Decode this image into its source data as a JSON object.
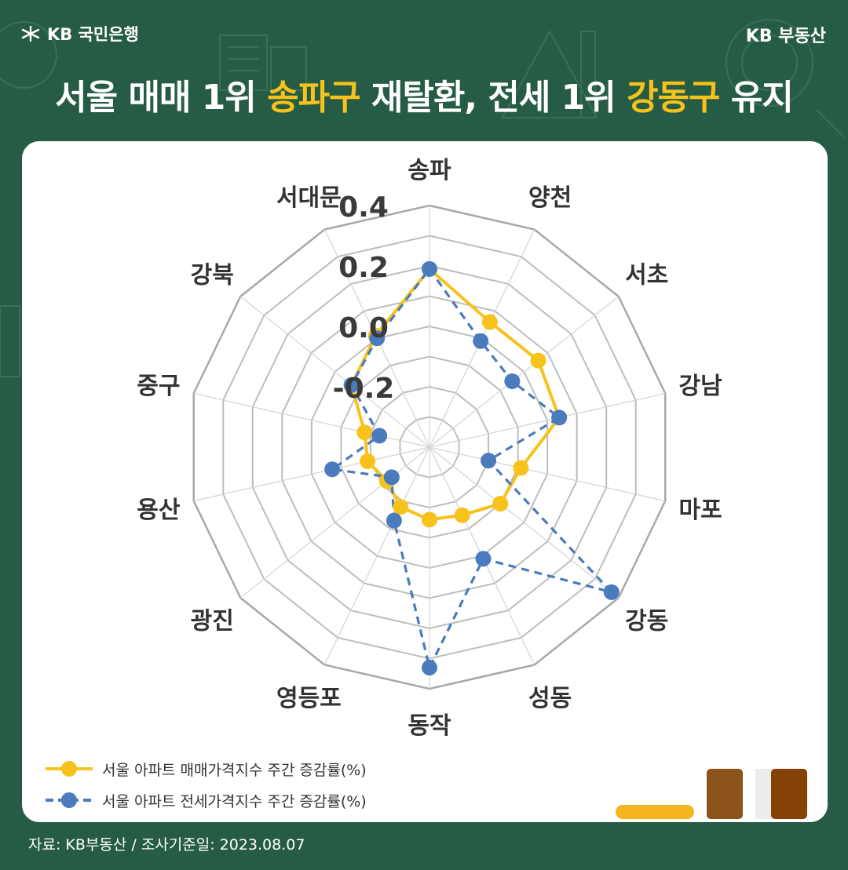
{
  "header": {
    "brand_left": "KB 국민은행",
    "brand_right": "KB 부동산",
    "title_parts": [
      "서울 매매 1위 ",
      "송파구",
      " 재탈환, 전세 1위 ",
      "강동구",
      " 유지"
    ],
    "highlight_color": "#f7c21b",
    "background_color": "#265c45"
  },
  "chart_data": {
    "type": "radar",
    "categories": [
      "송파",
      "양천",
      "서초",
      "강남",
      "마포",
      "강동",
      "성동",
      "동작",
      "영등포",
      "광진",
      "용산",
      "중구",
      "강북",
      "서대문"
    ],
    "rlim": [
      -0.4,
      0.4
    ],
    "rticks": [
      {
        "value": -0.2,
        "label": "-0.2"
      },
      {
        "value": 0.0,
        "label": "0.0"
      },
      {
        "value": 0.2,
        "label": "0.2"
      },
      {
        "value": 0.4,
        "label": "0.4"
      }
    ],
    "grid": true,
    "legend_position": "bottom-left",
    "series": [
      {
        "name": "서울 아파트 매매가격지수 주간 증감률(%)",
        "color": "#f7c21b",
        "line_style": "solid",
        "values": [
          0.19,
          0.06,
          0.06,
          0.04,
          -0.09,
          -0.1,
          -0.15,
          -0.16,
          -0.18,
          -0.22,
          -0.19,
          -0.18,
          -0.07,
          0.01
        ]
      },
      {
        "name": "서울 아파트 전세가격지수 주간 증감률(%)",
        "color": "#4a7bbd",
        "line_style": "dashed",
        "values": [
          0.19,
          -0.01,
          -0.05,
          0.04,
          -0.2,
          0.37,
          0.01,
          0.33,
          -0.13,
          -0.24,
          -0.07,
          -0.23,
          -0.07,
          0.0
        ]
      }
    ]
  },
  "footer": {
    "source": "자료: KB부동산 / 조사기준일: 2023.08.07"
  }
}
